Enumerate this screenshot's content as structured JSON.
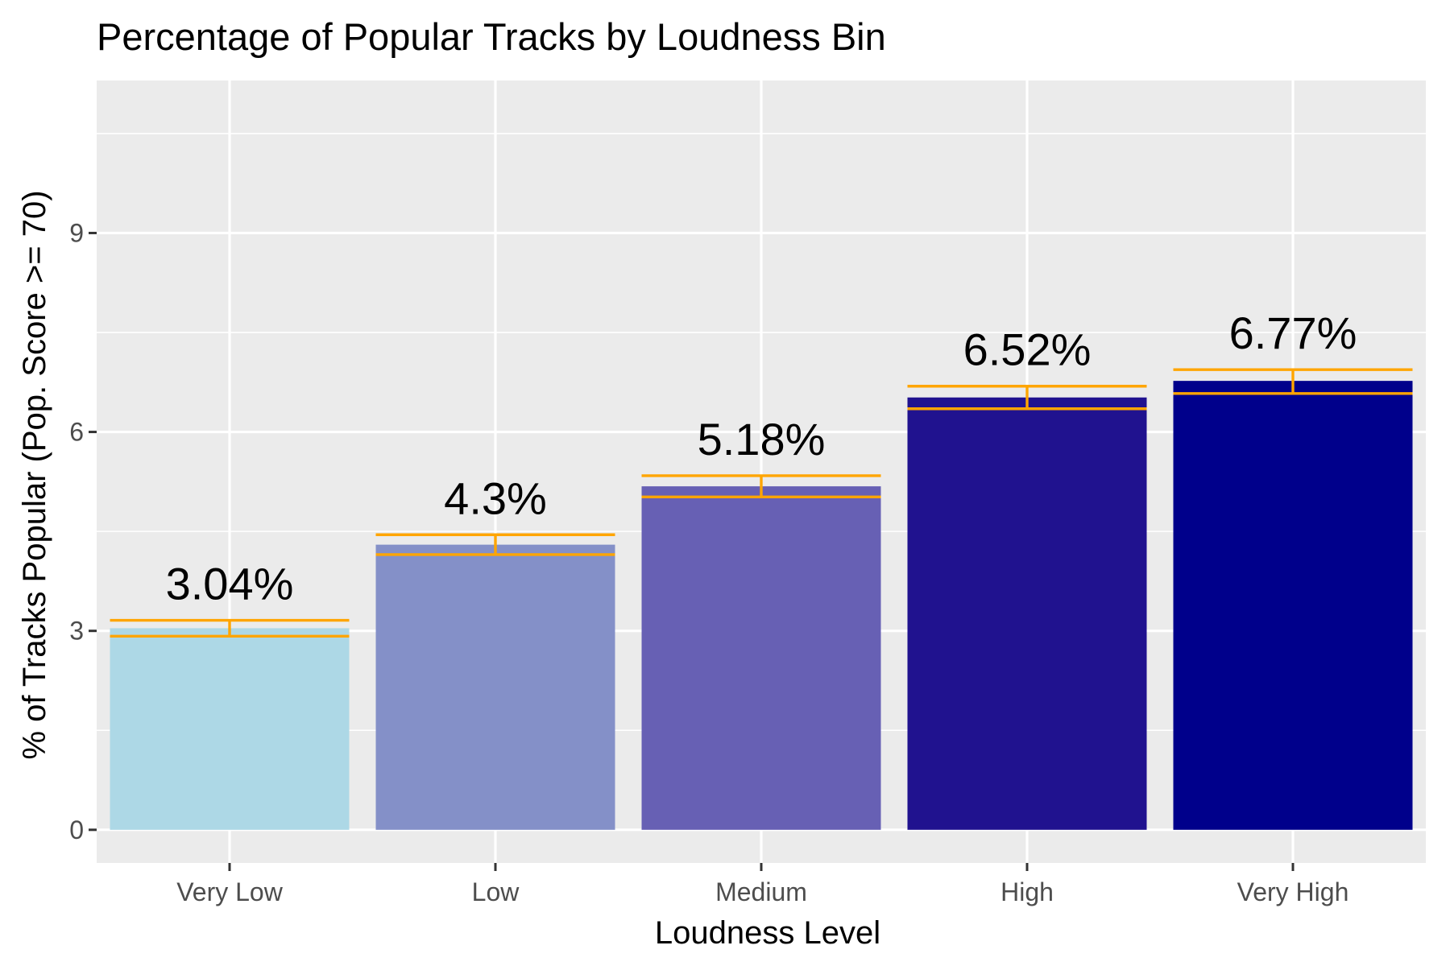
{
  "chart_data": {
    "type": "bar",
    "title": "Percentage of Popular Tracks by Loudness Bin",
    "xlabel": "Loudness Level",
    "ylabel": "% of Tracks Popular (Pop. Score >= 70)",
    "categories": [
      "Very Low",
      "Low",
      "Medium",
      "High",
      "Very High"
    ],
    "values": [
      3.04,
      4.3,
      5.18,
      6.52,
      6.77
    ],
    "value_labels": [
      "3.04%",
      "4.3%",
      "5.18%",
      "6.52%",
      "6.77%"
    ],
    "error_low": [
      2.92,
      4.15,
      5.02,
      6.35,
      6.58
    ],
    "error_high": [
      3.16,
      4.45,
      5.34,
      6.69,
      6.94
    ],
    "bar_colors": [
      "#add8e6",
      "#8490c8",
      "#6760b4",
      "#20128f",
      "#00008b"
    ],
    "error_color": "#ffa500",
    "ylim": [
      -0.5,
      11.3
    ],
    "yticks": [
      0,
      3,
      6,
      9
    ],
    "ytick_labels": [
      "0",
      "3",
      "6",
      "9"
    ],
    "grid": true,
    "panel_background": "#ebebeb",
    "grid_color": "#ffffff"
  }
}
